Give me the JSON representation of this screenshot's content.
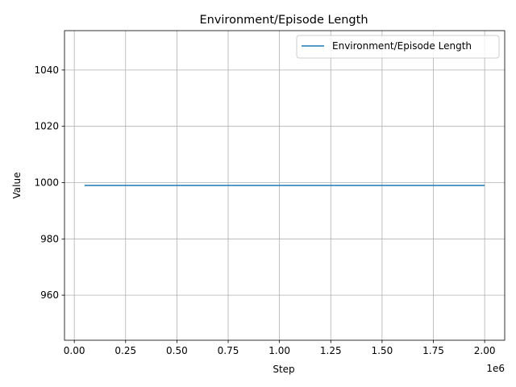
{
  "chart_data": {
    "type": "line",
    "title": "Environment/Episode Length",
    "xlabel": "Step",
    "ylabel": "Value",
    "x_offset_label": "1e6",
    "xlim": [
      -0.04775,
      2.09775
    ],
    "ylim": [
      944,
      1054
    ],
    "x_ticks": [
      0.0,
      0.25,
      0.5,
      0.75,
      1.0,
      1.25,
      1.5,
      1.75,
      2.0
    ],
    "x_tick_labels": [
      "0.00",
      "0.25",
      "0.50",
      "0.75",
      "1.00",
      "1.25",
      "1.50",
      "1.75",
      "2.00"
    ],
    "y_ticks": [
      960,
      980,
      1000,
      1020,
      1040
    ],
    "y_tick_labels": [
      "960",
      "980",
      "1000",
      "1020",
      "1040"
    ],
    "grid": true,
    "legend_position": "upper right",
    "series": [
      {
        "name": "Environment/Episode Length",
        "color": "#1f77b4",
        "x": [
          0.05,
          0.25,
          0.5,
          0.75,
          1.0,
          1.25,
          1.5,
          1.75,
          2.0
        ],
        "y": [
          999,
          999,
          999,
          999,
          999,
          999,
          999,
          999,
          999
        ]
      }
    ]
  }
}
